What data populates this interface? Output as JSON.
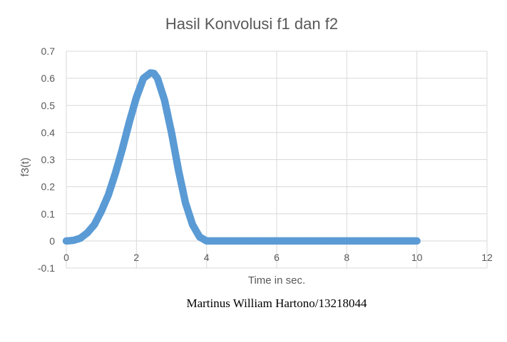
{
  "chart_data": {
    "type": "scatter",
    "title": "Hasil Konvolusi f1 dan f2",
    "xlabel": "Time in sec.",
    "ylabel": "f3(t)",
    "xlim": [
      0,
      12
    ],
    "ylim": [
      -0.1,
      0.7
    ],
    "x_ticks": [
      "0",
      "2",
      "4",
      "6",
      "8",
      "10",
      "12"
    ],
    "y_ticks": [
      "0.7",
      "0.6",
      "0.5",
      "0.4",
      "0.3",
      "0.2",
      "0.1",
      "0",
      "-0.1"
    ],
    "grid": true,
    "series": [
      {
        "color": "#5b9bd5",
        "x": [
          0,
          0.2,
          0.4,
          0.6,
          0.8,
          1.0,
          1.2,
          1.4,
          1.6,
          1.8,
          2.0,
          2.2,
          2.4,
          2.5,
          2.6,
          2.8,
          3.0,
          3.2,
          3.4,
          3.6,
          3.8,
          4.0,
          4.5,
          5,
          5.5,
          6,
          6.5,
          7,
          7.5,
          8,
          8.5,
          9,
          9.5,
          10
        ],
        "y": [
          0,
          0.002,
          0.01,
          0.03,
          0.06,
          0.11,
          0.17,
          0.25,
          0.34,
          0.44,
          0.53,
          0.6,
          0.62,
          0.618,
          0.6,
          0.52,
          0.4,
          0.26,
          0.14,
          0.06,
          0.015,
          0,
          0,
          0,
          0,
          0,
          0,
          0,
          0,
          0,
          0,
          0,
          0,
          0
        ]
      }
    ]
  },
  "footer": "Martinus William Hartono/13218044"
}
